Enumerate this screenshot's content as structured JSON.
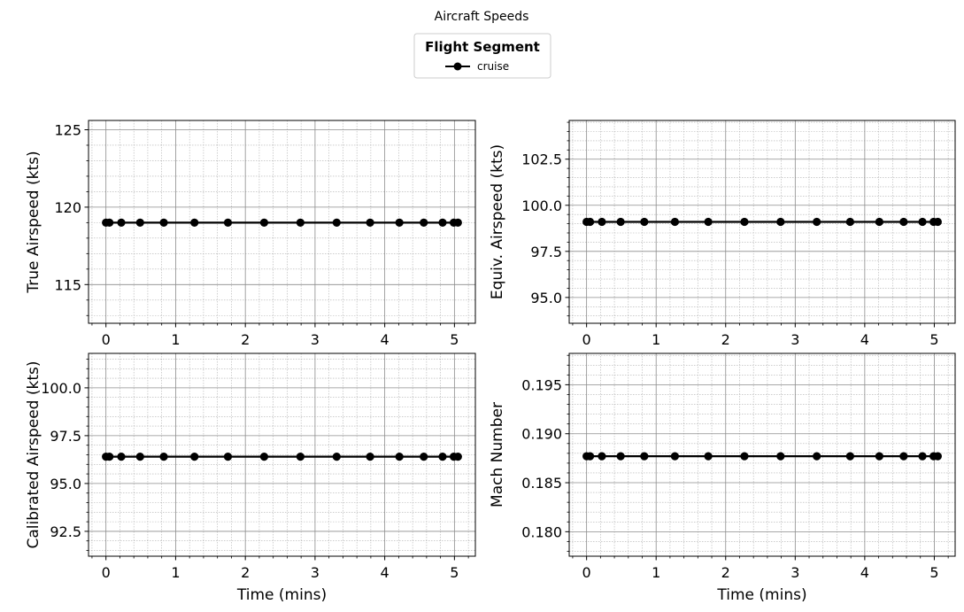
{
  "figure": {
    "title": "Aircraft Speeds",
    "legend": {
      "title": "Flight Segment",
      "entries": [
        {
          "label": "cruise",
          "color": "#000000",
          "marker": "circle"
        }
      ]
    }
  },
  "chart_data": [
    {
      "type": "line",
      "title": "",
      "xlabel": "",
      "ylabel": "True Airspeed (kts)",
      "xlim": [
        -0.25,
        5.3
      ],
      "ylim": [
        112.5,
        125.6
      ],
      "xticks": [
        0,
        1,
        2,
        3,
        4,
        5
      ],
      "yticks": [
        115,
        120,
        125
      ],
      "ytick_labels": [
        "115",
        "120",
        "125"
      ],
      "grid": true,
      "series": [
        {
          "name": "cruise",
          "color": "#000000",
          "x": [
            0,
            0.05,
            0.22,
            0.49,
            0.83,
            1.27,
            1.75,
            2.27,
            2.79,
            3.31,
            3.79,
            4.21,
            4.56,
            4.83,
            4.99,
            5.05
          ],
          "y": [
            119,
            119,
            119,
            119,
            119,
            119,
            119,
            119,
            119,
            119,
            119,
            119,
            119,
            119,
            119,
            119
          ]
        }
      ]
    },
    {
      "type": "line",
      "title": "",
      "xlabel": "",
      "ylabel": "Equiv. Airspeed (kts)",
      "xlim": [
        -0.25,
        5.3
      ],
      "ylim": [
        93.6,
        104.6
      ],
      "xticks": [
        0,
        1,
        2,
        3,
        4,
        5
      ],
      "yticks": [
        95.0,
        97.5,
        100.0,
        102.5
      ],
      "ytick_labels": [
        "95.0",
        "97.5",
        "100.0",
        "102.5"
      ],
      "grid": true,
      "series": [
        {
          "name": "cruise",
          "color": "#000000",
          "x": [
            0,
            0.05,
            0.22,
            0.49,
            0.83,
            1.27,
            1.75,
            2.27,
            2.79,
            3.31,
            3.79,
            4.21,
            4.56,
            4.83,
            4.99,
            5.05
          ],
          "y": [
            99.1,
            99.1,
            99.1,
            99.1,
            99.1,
            99.1,
            99.1,
            99.1,
            99.1,
            99.1,
            99.1,
            99.1,
            99.1,
            99.1,
            99.1,
            99.1
          ]
        }
      ]
    },
    {
      "type": "line",
      "title": "",
      "xlabel": "Time (mins)",
      "ylabel": "Calibrated Airspeed (kts)",
      "xlim": [
        -0.25,
        5.3
      ],
      "ylim": [
        91.2,
        101.8
      ],
      "xticks": [
        0,
        1,
        2,
        3,
        4,
        5
      ],
      "yticks": [
        92.5,
        95.0,
        97.5,
        100.0
      ],
      "ytick_labels": [
        "92.5",
        "95.0",
        "97.5",
        "100.0"
      ],
      "grid": true,
      "series": [
        {
          "name": "cruise",
          "color": "#000000",
          "x": [
            0,
            0.05,
            0.22,
            0.49,
            0.83,
            1.27,
            1.75,
            2.27,
            2.79,
            3.31,
            3.79,
            4.21,
            4.56,
            4.83,
            4.99,
            5.05
          ],
          "y": [
            96.4,
            96.4,
            96.4,
            96.4,
            96.4,
            96.4,
            96.4,
            96.4,
            96.4,
            96.4,
            96.4,
            96.4,
            96.4,
            96.4,
            96.4,
            96.4
          ]
        }
      ]
    },
    {
      "type": "line",
      "title": "",
      "xlabel": "Time (mins)",
      "ylabel": "Mach Number",
      "xlim": [
        -0.25,
        5.3
      ],
      "ylim": [
        0.1775,
        0.1982
      ],
      "xticks": [
        0,
        1,
        2,
        3,
        4,
        5
      ],
      "yticks": [
        0.18,
        0.185,
        0.19,
        0.195
      ],
      "ytick_labels": [
        "0.180",
        "0.185",
        "0.190",
        "0.195"
      ],
      "grid": true,
      "series": [
        {
          "name": "cruise",
          "color": "#000000",
          "x": [
            0,
            0.05,
            0.22,
            0.49,
            0.83,
            1.27,
            1.75,
            2.27,
            2.79,
            3.31,
            3.79,
            4.21,
            4.56,
            4.83,
            4.99,
            5.05
          ],
          "y": [
            0.1877,
            0.1877,
            0.1877,
            0.1877,
            0.1877,
            0.1877,
            0.1877,
            0.1877,
            0.1877,
            0.1877,
            0.1877,
            0.1877,
            0.1877,
            0.1877,
            0.1877,
            0.1877
          ]
        }
      ]
    }
  ]
}
